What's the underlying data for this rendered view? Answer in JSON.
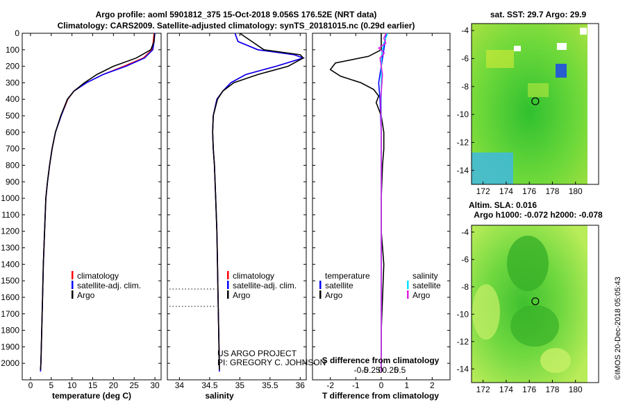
{
  "titles": {
    "line1": "Argo profile: aoml 5901812_375 15-Oct-2018 9.056S 176.52E (NRT data)",
    "line2": "Climatology: CARS2009. Satellite-adjusted climatology: synTS_20181015.nc (0.29d earlier)",
    "sst": "sat. SST: 29.7 Argo: 29.9",
    "sla1": "Altim. SLA: 0.016",
    "sla2": "Argo h1000: -0.072 h2000: -0.078",
    "imos": "©IMOS 20-Dec-2018 05:05:43",
    "project1": "US ARGO PROJECT",
    "project2": "PI: GREGORY C. JOHNSON"
  },
  "colors": {
    "climatology": "#ff0000",
    "satellite": "#0000ff",
    "argo": "#000000",
    "sal_sat": "#00e0ff",
    "sal_argo": "#e020e0"
  },
  "chart_data": [
    {
      "type": "line",
      "name": "temperature",
      "xlabel": "temperature (deg C)",
      "ylabel": "",
      "xlim": [
        -2,
        31.5
      ],
      "ylim": [
        2100,
        0
      ],
      "xticks": [
        0,
        5,
        10,
        15,
        20,
        25,
        30
      ],
      "yticks": [
        0,
        100,
        200,
        300,
        400,
        500,
        600,
        700,
        800,
        900,
        1000,
        1100,
        1200,
        1300,
        1400,
        1500,
        1600,
        1700,
        1800,
        1900,
        2000
      ],
      "legend": [
        "climatology",
        "satellite-adj. clim.",
        "Argo"
      ],
      "series": [
        {
          "name": "climatology",
          "x": [
            29.8,
            29.6,
            29.3,
            27.2,
            22.5,
            17.5,
            13.5,
            10.5,
            9.0,
            7.4,
            6.0,
            5.2,
            4.6,
            4.1,
            3.7,
            3.4,
            3.1,
            2.9,
            2.7,
            2.5,
            2.4
          ],
          "y": [
            0,
            50,
            100,
            150,
            200,
            250,
            300,
            350,
            400,
            500,
            600,
            700,
            800,
            900,
            1000,
            1200,
            1400,
            1600,
            1800,
            2000,
            2050
          ]
        },
        {
          "name": "satellite-adj. clim.",
          "x": [
            30.0,
            29.8,
            29.5,
            27.5,
            23.0,
            17.5,
            13.5,
            10.5,
            8.9,
            7.4,
            6.0,
            5.2,
            4.6,
            4.1,
            3.7,
            3.4,
            3.1,
            2.9,
            2.7,
            2.5,
            2.4
          ],
          "y": [
            0,
            50,
            100,
            150,
            200,
            250,
            300,
            350,
            400,
            500,
            600,
            700,
            800,
            900,
            1000,
            1200,
            1400,
            1600,
            1800,
            2000,
            2050
          ]
        },
        {
          "name": "Argo",
          "x": [
            29.9,
            29.8,
            29.0,
            25.5,
            20.0,
            16.0,
            13.0,
            10.5,
            8.9,
            7.3,
            6.0,
            5.2,
            4.6,
            4.1,
            3.7,
            3.4,
            3.1,
            2.9,
            2.7,
            2.5,
            2.4
          ],
          "y": [
            5,
            50,
            100,
            150,
            200,
            250,
            300,
            350,
            400,
            500,
            600,
            700,
            800,
            900,
            1000,
            1200,
            1400,
            1600,
            1800,
            2000,
            2040
          ]
        }
      ]
    },
    {
      "type": "line",
      "name": "salinity",
      "xlabel": "salinity",
      "xlim": [
        33.8,
        36.1
      ],
      "ylim": [
        2100,
        0
      ],
      "xticks": [
        34,
        34.5,
        35,
        35.5,
        36
      ],
      "xticklabels": [
        "34",
        "34.5",
        "35",
        "35.5",
        "36"
      ],
      "legend": [
        "climatology",
        "satellite-adj. clim.",
        "Argo"
      ],
      "series": [
        {
          "name": "climatology",
          "x": [
            34.92,
            34.97,
            35.3,
            35.9,
            36.05,
            35.6,
            35.1,
            34.85,
            34.72,
            34.62,
            34.56,
            34.55,
            34.56,
            34.58,
            34.6,
            34.62,
            34.63,
            34.64,
            34.65,
            34.66,
            34.66
          ],
          "y": [
            0,
            50,
            100,
            130,
            150,
            200,
            250,
            300,
            350,
            400,
            500,
            600,
            700,
            800,
            1000,
            1200,
            1400,
            1600,
            1800,
            2000,
            2050
          ]
        },
        {
          "name": "satellite-adj. clim.",
          "x": [
            34.92,
            34.97,
            35.3,
            35.9,
            36.05,
            35.6,
            35.1,
            34.85,
            34.72,
            34.62,
            34.56,
            34.55,
            34.56,
            34.58,
            34.6,
            34.62,
            34.63,
            34.64,
            34.65,
            34.66,
            34.66
          ],
          "y": [
            0,
            50,
            100,
            130,
            150,
            200,
            250,
            300,
            350,
            400,
            500,
            600,
            700,
            800,
            1000,
            1200,
            1400,
            1600,
            1800,
            2000,
            2050
          ]
        },
        {
          "name": "Argo",
          "x": [
            35.0,
            35.2,
            35.4,
            36.0,
            36.05,
            35.8,
            35.3,
            34.9,
            34.72,
            34.63,
            34.56,
            34.55,
            34.56,
            34.58,
            34.6,
            34.62,
            34.63,
            34.64,
            34.65,
            34.66,
            34.66
          ],
          "y": [
            0,
            50,
            100,
            130,
            150,
            200,
            250,
            300,
            350,
            400,
            500,
            600,
            700,
            800,
            1000,
            1200,
            1400,
            1600,
            1800,
            2000,
            2040
          ]
        }
      ]
    },
    {
      "type": "line",
      "name": "difference",
      "xlabel": "T difference from climatology",
      "title": "S difference from climatology",
      "xlim": [
        -2.7,
        2.7
      ],
      "ylim": [
        2100,
        0
      ],
      "xticks": [
        -2,
        -1,
        0,
        1,
        2
      ],
      "xticklabels": [
        "-2",
        "-1",
        "0",
        "1",
        "2"
      ],
      "sticks": [
        -0.5,
        -0.25,
        0,
        0.25,
        0.5
      ],
      "sticklabels": [
        "-0.5",
        "-0.25",
        "0",
        "0.25",
        "0.5"
      ],
      "legend_t": [
        "temperature",
        "satellite",
        "Argo"
      ],
      "legend_s": [
        "salinity",
        "satellite",
        "Argo"
      ],
      "series": [
        {
          "name": "T satellite",
          "x": [
            0.2,
            0.1,
            0.0,
            -0.1,
            -0.05,
            0.0,
            0.0,
            0.0,
            0.0,
            0.0,
            0.0
          ],
          "y": [
            0,
            100,
            200,
            300,
            400,
            600,
            800,
            1000,
            1400,
            1800,
            2050
          ]
        },
        {
          "name": "T Argo",
          "x": [
            0.0,
            0.0,
            -0.5,
            -1.8,
            -2.0,
            -1.6,
            -0.8,
            -0.3,
            -0.1,
            -0.2,
            0.0,
            0.1,
            0.1,
            0.05,
            0.0,
            0.0,
            0.1,
            0.0,
            0.0
          ],
          "y": [
            0,
            100,
            140,
            180,
            220,
            260,
            300,
            340,
            380,
            420,
            500,
            600,
            700,
            800,
            1000,
            1200,
            1400,
            1800,
            2050
          ]
        },
        {
          "name": "S satellite",
          "x": [
            0.25,
            0.1,
            0.02,
            0.0,
            0.0,
            0.0,
            0.0,
            0.0,
            0.0
          ],
          "y": [
            0,
            60,
            120,
            200,
            300,
            600,
            1000,
            1500,
            2050
          ]
        },
        {
          "name": "S Argo",
          "x": [
            0.2,
            0.1,
            0.18,
            -0.1,
            0.12,
            -0.05,
            0.0,
            0.05,
            -0.02,
            0.0,
            0.0,
            0.0
          ],
          "y": [
            0,
            30,
            60,
            90,
            120,
            150,
            200,
            250,
            400,
            600,
            1000,
            2050
          ]
        }
      ]
    },
    {
      "type": "heatmap",
      "name": "sst-map",
      "xticks": [
        172,
        174,
        176,
        178,
        180
      ],
      "yticks": [
        -4,
        -6,
        -8,
        -10,
        -12,
        -14
      ],
      "xlim": [
        171,
        182
      ],
      "ylim": [
        -15,
        -3.5
      ],
      "marker": {
        "lon": 176.52,
        "lat": -9.056
      }
    },
    {
      "type": "heatmap",
      "name": "sla-map",
      "xticks": [
        172,
        174,
        176,
        178,
        180
      ],
      "yticks": [
        -4,
        -6,
        -8,
        -10,
        -12,
        -14
      ],
      "xlim": [
        171,
        182
      ],
      "ylim": [
        -15,
        -3.5
      ],
      "marker": {
        "lon": 176.52,
        "lat": -9.056
      }
    }
  ]
}
